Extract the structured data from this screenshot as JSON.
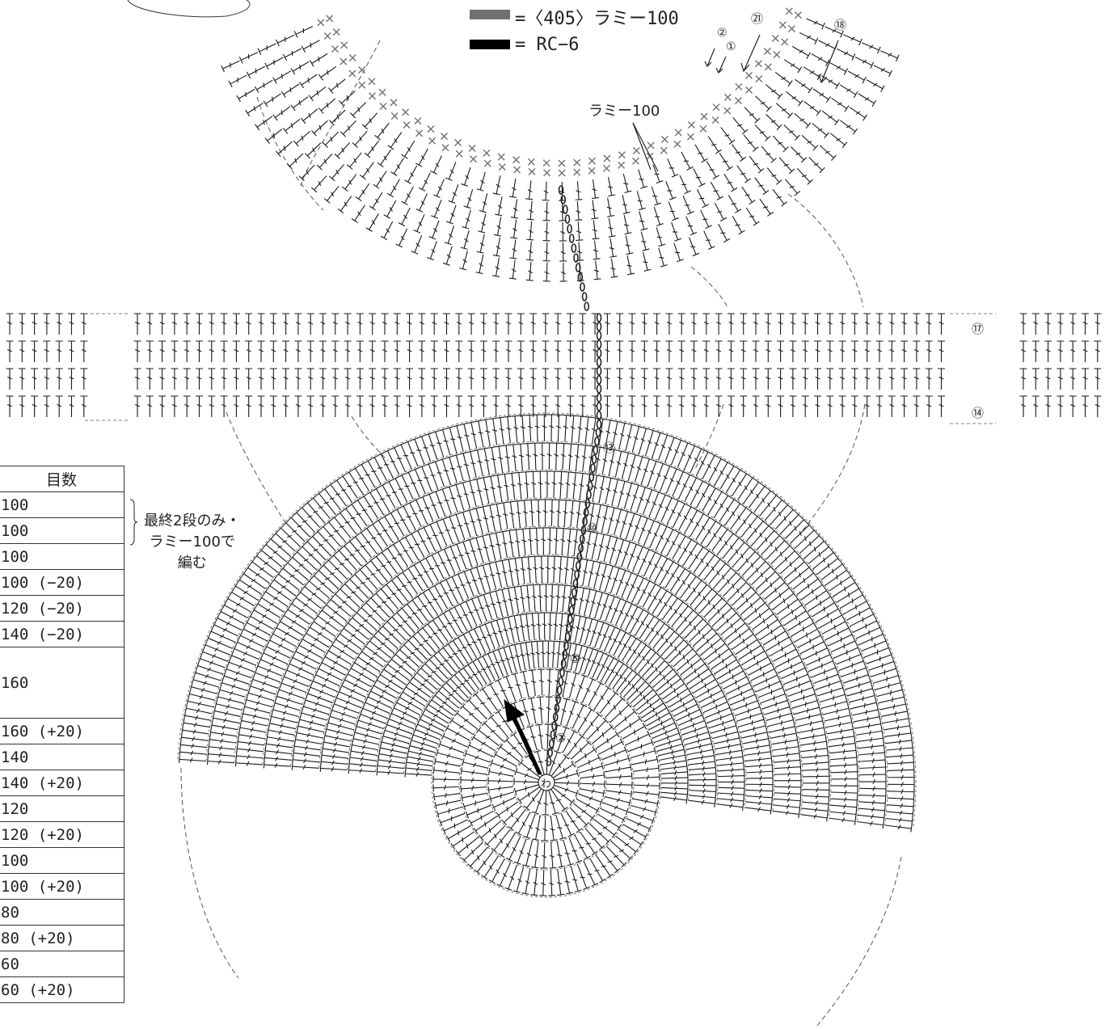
{
  "legend": [
    {
      "label": "=〈405〉ラミー100",
      "color": "#707070"
    },
    {
      "label": "= RC−6",
      "color": "#000000"
    }
  ],
  "markers": {
    "r1": "①",
    "r2": "②",
    "r21": "㉑",
    "r18": "⑱",
    "r17": "⑰",
    "r14": "⑭",
    "r13": "⑬",
    "r10": "⑩",
    "r5": "⑤",
    "r2b": "②",
    "ring": "わ"
  },
  "labels": {
    "ramie": "ラミー100"
  },
  "note": {
    "line1": "最終2段のみ・",
    "line2": "ラミー100で",
    "line3": "編む"
  },
  "table": {
    "header": "目数",
    "rows": [
      "100",
      "100",
      "100",
      "100 (−20)",
      "120 (−20)",
      "140 (−20)",
      "160",
      "160 (+20)",
      "140",
      "140 (+20)",
      "120",
      "120 (+20)",
      "100",
      "100 (+20)",
      "80",
      "80 (+20)",
      "60",
      "60 (+20)"
    ]
  },
  "colors": {
    "ink": "#1a1a1a",
    "gray_yarn": "#707070",
    "black_yarn": "#000000",
    "dash": "#555555"
  }
}
